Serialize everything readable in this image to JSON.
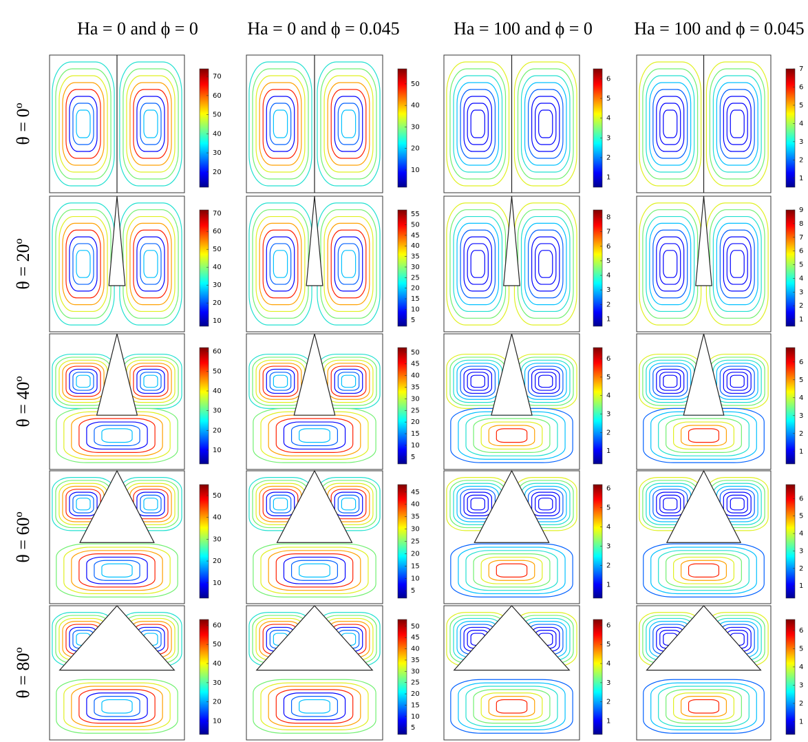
{
  "columns": [
    "Ha = 0 and ϕ = 0",
    "Ha = 0 and ϕ = 0.045",
    "Ha = 100 and ϕ = 0",
    "Ha = 100 and ϕ = 0.045"
  ],
  "rows": [
    "θ = 0º",
    "θ = 20º",
    "θ = 40º",
    "θ = 60º",
    "θ = 80º"
  ],
  "panels": [
    [
      {
        "range": [
          12,
          74
        ],
        "ticks": [
          70,
          60,
          50,
          40,
          30,
          20
        ]
      },
      {
        "range": [
          2,
          57
        ],
        "ticks": [
          50,
          40,
          30,
          20,
          10
        ]
      },
      {
        "range": [
          0.5,
          6.5
        ],
        "ticks": [
          6,
          5,
          4,
          3,
          2,
          1
        ]
      },
      {
        "range": [
          0.5,
          7
        ],
        "ticks": [
          7,
          6,
          5,
          4,
          3,
          2,
          1
        ]
      }
    ],
    [
      {
        "range": [
          7,
          72
        ],
        "ticks": [
          70,
          60,
          50,
          40,
          30,
          20,
          10
        ]
      },
      {
        "range": [
          2,
          57
        ],
        "ticks": [
          55,
          50,
          45,
          40,
          35,
          30,
          25,
          20,
          15,
          10,
          5
        ]
      },
      {
        "range": [
          0.5,
          8.5
        ],
        "ticks": [
          8,
          7,
          6,
          5,
          4,
          3,
          2,
          1
        ]
      },
      {
        "range": [
          0.5,
          9
        ],
        "ticks": [
          9,
          8,
          7,
          6,
          5,
          4,
          3,
          2,
          1
        ]
      }
    ],
    [
      {
        "range": [
          3,
          62
        ],
        "ticks": [
          60,
          50,
          40,
          30,
          20,
          10
        ]
      },
      {
        "range": [
          2,
          52
        ],
        "ticks": [
          50,
          45,
          40,
          35,
          30,
          25,
          20,
          15,
          10,
          5
        ]
      },
      {
        "range": [
          0.3,
          6.6
        ],
        "ticks": [
          6,
          5,
          4,
          3,
          2,
          1
        ]
      },
      {
        "range": [
          0.3,
          6.8
        ],
        "ticks": [
          6,
          5,
          4,
          3,
          2,
          1
        ]
      }
    ],
    [
      {
        "range": [
          3,
          55
        ],
        "ticks": [
          50,
          40,
          30,
          20,
          10
        ]
      },
      {
        "range": [
          2,
          48
        ],
        "ticks": [
          45,
          40,
          35,
          30,
          25,
          20,
          15,
          10,
          5
        ]
      },
      {
        "range": [
          0.3,
          6.2
        ],
        "ticks": [
          6,
          5,
          4,
          3,
          2,
          1
        ]
      },
      {
        "range": [
          0.3,
          6.8
        ],
        "ticks": [
          6,
          5,
          4,
          3,
          2,
          1
        ]
      }
    ],
    [
      {
        "range": [
          3,
          63
        ],
        "ticks": [
          60,
          50,
          40,
          30,
          20,
          10
        ]
      },
      {
        "range": [
          2,
          53
        ],
        "ticks": [
          50,
          45,
          40,
          35,
          30,
          25,
          20,
          15,
          10,
          5
        ]
      },
      {
        "range": [
          0.3,
          6.3
        ],
        "ticks": [
          6,
          5,
          4,
          3,
          2,
          1
        ]
      },
      {
        "range": [
          0.3,
          6.6
        ],
        "ticks": [
          6,
          5,
          4,
          3,
          2,
          1
        ]
      }
    ]
  ]
}
